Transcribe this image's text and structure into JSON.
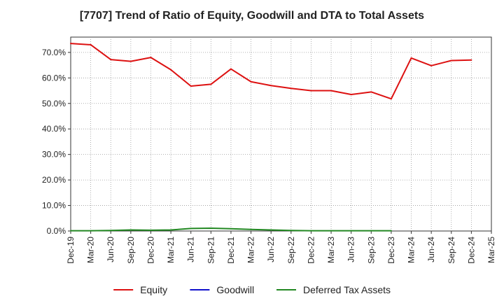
{
  "chart_data": {
    "type": "line",
    "title": "[7707]  Trend of Ratio of Equity, Goodwill and DTA to Total Assets",
    "xlabel": "",
    "ylabel": "",
    "x_tick_labels": [
      "Dec-19",
      "Mar-20",
      "Jun-20",
      "Sep-20",
      "Dec-20",
      "Mar-21",
      "Jun-21",
      "Sep-21",
      "Dec-21",
      "Mar-22",
      "Jun-22",
      "Sep-22",
      "Dec-22",
      "Mar-23",
      "Jun-23",
      "Sep-23",
      "Dec-23",
      "Mar-24",
      "Jun-24",
      "Sep-24",
      "Dec-24",
      "Mar-25"
    ],
    "y_tick_labels": [
      "0.0%",
      "10.0%",
      "20.0%",
      "30.0%",
      "40.0%",
      "50.0%",
      "60.0%",
      "70.0%"
    ],
    "ylim": [
      0,
      76
    ],
    "y_ticks": [
      0,
      10,
      20,
      30,
      40,
      50,
      60,
      70
    ],
    "grid": true,
    "legend_position": "bottom",
    "series": [
      {
        "name": "Equity",
        "color": "#dd1111",
        "values": [
          73.5,
          73.0,
          67.2,
          66.5,
          68.0,
          63.2,
          56.8,
          57.5,
          63.5,
          58.5,
          57.0,
          55.9,
          55.0,
          55.0,
          53.5,
          54.5,
          51.8,
          67.8,
          64.8,
          66.8,
          67.0,
          null
        ]
      },
      {
        "name": "Goodwill",
        "color": "#1111cc",
        "values": [
          null,
          null,
          null,
          null,
          null,
          null,
          null,
          null,
          null,
          null,
          null,
          null,
          null,
          null,
          null,
          null,
          null,
          null,
          null,
          null,
          null,
          null
        ]
      },
      {
        "name": "Deferred Tax Assets",
        "color": "#228822",
        "values": [
          0.1,
          0.1,
          0.2,
          0.4,
          0.3,
          0.4,
          1.0,
          1.1,
          0.9,
          0.6,
          0.4,
          0.2,
          0.1,
          0.1,
          0.1,
          0.1,
          0.1,
          null,
          null,
          null,
          null,
          null
        ]
      }
    ]
  }
}
